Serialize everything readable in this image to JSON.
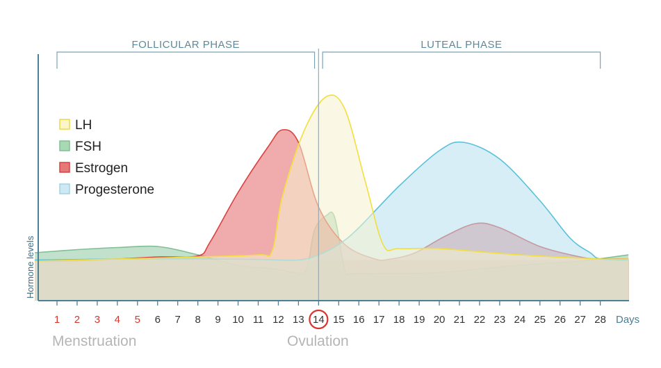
{
  "chart_data": {
    "type": "area",
    "ylabel": "Hormone levels",
    "x_unit_label": "Days",
    "days": [
      1,
      2,
      3,
      4,
      5,
      6,
      7,
      8,
      9,
      10,
      11,
      12,
      13,
      14,
      15,
      16,
      17,
      18,
      19,
      20,
      21,
      22,
      23,
      24,
      25,
      26,
      27,
      28
    ],
    "menstruation_days": [
      1,
      2,
      3,
      4,
      5
    ],
    "ovulation_day": 14,
    "ylim": [
      0,
      100
    ],
    "phases": [
      {
        "label": "FOLLICULAR PHASE",
        "start_day": 1,
        "end_day": 13.8
      },
      {
        "label": "LUTEAL PHASE",
        "start_day": 14.2,
        "end_day": 28
      }
    ],
    "bottom_labels": {
      "menstruation": "Menstruation",
      "ovulation": "Ovulation"
    },
    "series": [
      {
        "name": "FSH",
        "color_fill": "#8fc9a3",
        "color_line": "#7fbf93",
        "points": [
          [
            -0.1,
            13
          ],
          [
            2,
            14.5
          ],
          [
            4,
            15.5
          ],
          [
            6,
            16
          ],
          [
            8,
            12
          ],
          [
            10,
            7
          ],
          [
            12,
            5
          ],
          [
            12.8,
            3.5
          ],
          [
            13.4,
            5
          ],
          [
            13.8,
            24
          ],
          [
            14.4,
            31
          ],
          [
            14.8,
            30
          ],
          [
            15.3,
            5
          ],
          [
            15.6,
            3
          ],
          [
            17,
            3
          ],
          [
            20,
            3.5
          ],
          [
            24,
            7
          ],
          [
            27,
            9
          ],
          [
            29.4,
            12
          ]
        ]
      },
      {
        "name": "Estrogen",
        "color_fill": "#e4686a",
        "color_line": "#d9413f",
        "points": [
          [
            -0.1,
            9
          ],
          [
            2,
            9.2
          ],
          [
            4,
            10
          ],
          [
            6,
            11
          ],
          [
            8,
            11.5
          ],
          [
            8.6,
            18
          ],
          [
            10,
            42
          ],
          [
            11.5,
            64
          ],
          [
            12.2,
            72
          ],
          [
            13,
            66
          ],
          [
            14,
            35
          ],
          [
            15.3,
            17
          ],
          [
            16.8,
            10
          ],
          [
            17.6,
            10
          ],
          [
            18.8,
            13
          ],
          [
            20.3,
            21
          ],
          [
            21.8,
            27
          ],
          [
            23,
            25
          ],
          [
            25,
            16
          ],
          [
            27,
            11
          ],
          [
            28,
            10
          ],
          [
            29.4,
            10
          ]
        ]
      },
      {
        "name": "Progesterone",
        "color_fill": "#b7e0ef",
        "color_line": "#59c1d9",
        "points": [
          [
            -0.1,
            9.5
          ],
          [
            4,
            10
          ],
          [
            8,
            10
          ],
          [
            11,
            9.8
          ],
          [
            13,
            9.5
          ],
          [
            14,
            12
          ],
          [
            15,
            17
          ],
          [
            16,
            25
          ],
          [
            18,
            45
          ],
          [
            20,
            62
          ],
          [
            21.2,
            66
          ],
          [
            23,
            58
          ],
          [
            25,
            38
          ],
          [
            26.5,
            20
          ],
          [
            27.5,
            13
          ],
          [
            28,
            10
          ],
          [
            29.4,
            9.5
          ]
        ]
      },
      {
        "name": "LH",
        "color_fill": "#f6f2cf",
        "color_line": "#f2df3e",
        "points": [
          [
            -0.1,
            9
          ],
          [
            4,
            10
          ],
          [
            8,
            11
          ],
          [
            11,
            12
          ],
          [
            11.7,
            14
          ],
          [
            12.2,
            40
          ],
          [
            13.3,
            72
          ],
          [
            14.4,
            88
          ],
          [
            15.3,
            82
          ],
          [
            16.3,
            48
          ],
          [
            17.2,
            17
          ],
          [
            18,
            15
          ],
          [
            20,
            15
          ],
          [
            24,
            12
          ],
          [
            28,
            10
          ],
          [
            29.4,
            10
          ]
        ]
      }
    ],
    "legend": [
      {
        "name": "LH",
        "fill": "#fbf6c8",
        "stroke": "#eadb45"
      },
      {
        "name": "FSH",
        "fill": "#a9d8b4",
        "stroke": "#7fbf93"
      },
      {
        "name": "Estrogen",
        "fill": "#e7787a",
        "stroke": "#d9413f"
      },
      {
        "name": "Progesterone",
        "fill": "#cfe9f4",
        "stroke": "#9ed3e6"
      }
    ],
    "colors": {
      "axis": "#4a7f95",
      "menstruation_tick": "#d7352e",
      "ovulation_circle": "#d7352e",
      "phase_bracket": "#7aa3b3",
      "ovulation_line": "#9aa7ad",
      "base_band": "#e8cdb3"
    },
    "legend_placement": "left",
    "grid": false
  }
}
